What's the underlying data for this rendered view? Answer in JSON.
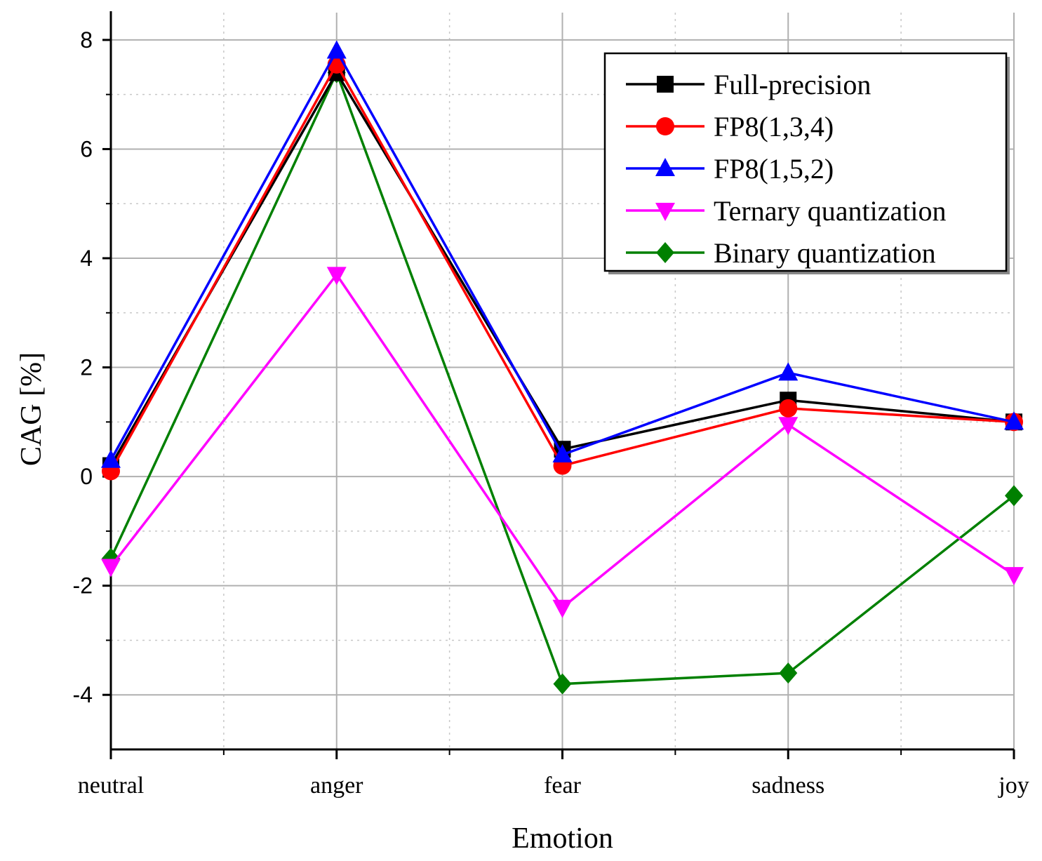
{
  "chart_data": {
    "type": "line",
    "title": "",
    "xlabel": "Emotion",
    "ylabel": "CAG [%]",
    "categories": [
      "neutral",
      "anger",
      "fear",
      "sadness",
      "joy"
    ],
    "ylim": [
      -5,
      8.5
    ],
    "yticks": [
      -4,
      -2,
      0,
      2,
      4,
      6,
      8
    ],
    "ytick_labels": [
      "-4",
      "-2",
      "0",
      "2",
      "4",
      "6",
      "8"
    ],
    "grid": true,
    "legend_position": "top-right",
    "series": [
      {
        "name": "Full-precision",
        "color": "#000000",
        "marker": "square",
        "values": [
          0.2,
          7.4,
          0.5,
          1.4,
          1.0
        ]
      },
      {
        "name": "FP8(1,3,4)",
        "color": "#ff0000",
        "marker": "circle",
        "values": [
          0.1,
          7.55,
          0.2,
          1.25,
          1.0
        ]
      },
      {
        "name": "FP8(1,5,2)",
        "color": "#0000ff",
        "marker": "triangle-up",
        "values": [
          0.3,
          7.8,
          0.4,
          1.9,
          1.0
        ]
      },
      {
        "name": "Ternary quantization",
        "color": "#ff00ff",
        "marker": "triangle-down",
        "values": [
          -1.65,
          3.7,
          -2.4,
          0.95,
          -1.8
        ]
      },
      {
        "name": "Binary quantization",
        "color": "#008000",
        "marker": "diamond",
        "values": [
          -1.5,
          7.4,
          -3.8,
          -3.6,
          -0.35
        ]
      }
    ]
  }
}
